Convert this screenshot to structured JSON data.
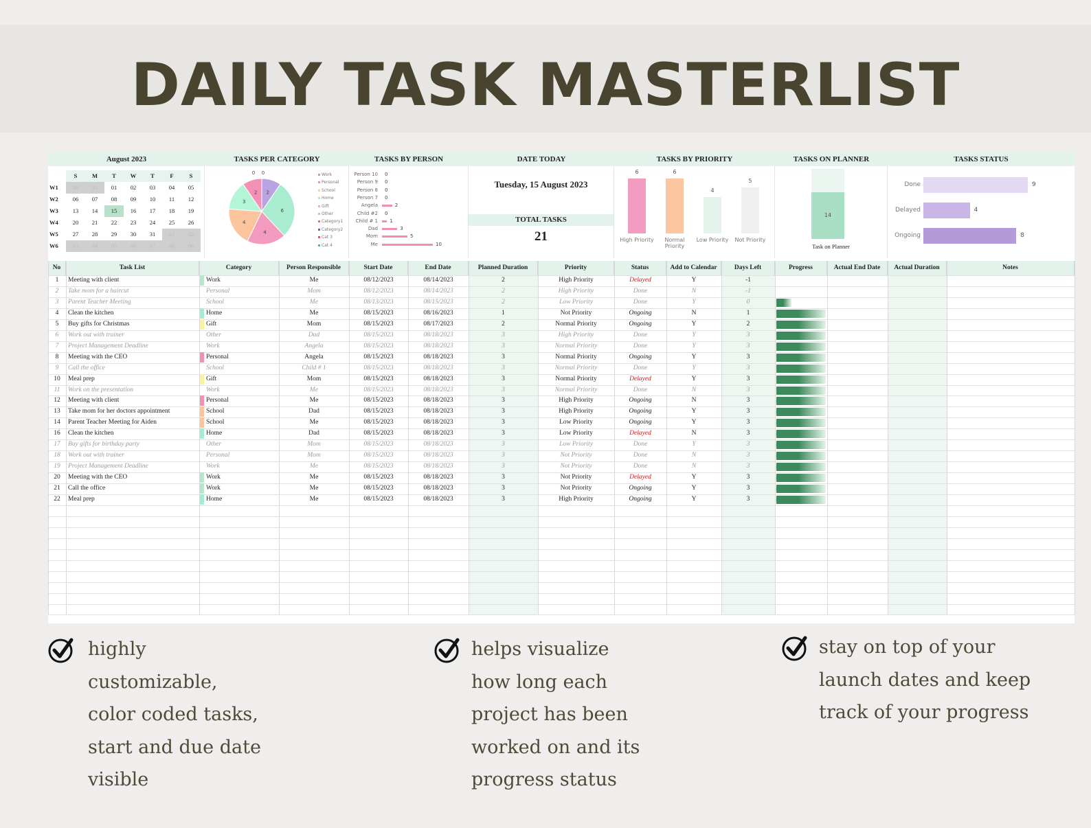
{
  "page_title": "DAILY TASK MASTERLIST",
  "dashboard": {
    "calendar": {
      "title": "August  2023",
      "dow": [
        "S",
        "M",
        "T",
        "W",
        "T",
        "F",
        "S"
      ],
      "weeks": [
        {
          "label": "W1",
          "days": [
            "30",
            "31",
            "01",
            "02",
            "03",
            "04",
            "05"
          ],
          "out": [
            0,
            1
          ]
        },
        {
          "label": "W2",
          "days": [
            "06",
            "07",
            "08",
            "09",
            "10",
            "11",
            "12"
          ],
          "out": []
        },
        {
          "label": "W3",
          "days": [
            "13",
            "14",
            "15",
            "16",
            "17",
            "18",
            "19"
          ],
          "out": [],
          "today": 2
        },
        {
          "label": "W4",
          "days": [
            "20",
            "21",
            "22",
            "23",
            "24",
            "25",
            "26"
          ],
          "out": []
        },
        {
          "label": "W5",
          "days": [
            "27",
            "28",
            "29",
            "30",
            "31",
            "01",
            "02"
          ],
          "out": [
            5,
            6
          ]
        },
        {
          "label": "W6",
          "days": [
            "03",
            "04",
            "05",
            "06",
            "07",
            "08",
            "09"
          ],
          "out": [
            0,
            1,
            2,
            3,
            4,
            5,
            6
          ]
        }
      ]
    },
    "category_chart": {
      "title": "TASKS PER CATEGORY",
      "legend": [
        "Work",
        "Personal",
        "School",
        "Home",
        "Gift",
        "Other",
        "Category1",
        "Category2",
        "Cat 3",
        "Cat 4"
      ],
      "legend_colors": [
        "#b39ddb",
        "#f48fb1",
        "#ffcc99",
        "#a8efd0",
        "#f8a7c9",
        "#c9b6e4",
        "#f06292",
        "#7e57c2",
        "#ef5350",
        "#4db6ac"
      ],
      "slices": [
        {
          "label": "Work",
          "value": 2,
          "color": "#b9a3e3"
        },
        {
          "label": "Home",
          "value": 6,
          "color": "#a9eccf"
        },
        {
          "label": "Personal",
          "value": 4,
          "color": "#f39bbf"
        },
        {
          "label": "School",
          "value": 4,
          "color": "#fcc49c"
        },
        {
          "label": "Other",
          "value": 3,
          "color": "#b4f5d8"
        },
        {
          "label": "Gift",
          "value": 2,
          "color": "#f48fb6"
        },
        {
          "label": "Category1",
          "value": 0,
          "color": "#dddddd"
        },
        {
          "label": "Category2",
          "value": 0,
          "color": "#dddddd"
        }
      ]
    },
    "person_chart": {
      "title": "TASKS BY PERSON",
      "rows": [
        {
          "name": "Person 10",
          "value": 0
        },
        {
          "name": "Person 9",
          "value": 0
        },
        {
          "name": "Person 8",
          "value": 0
        },
        {
          "name": "Person 7",
          "value": 0
        },
        {
          "name": "Angela",
          "value": 2
        },
        {
          "name": "Child #2",
          "value": 0
        },
        {
          "name": "Child # 1",
          "value": 1
        },
        {
          "name": "Dad",
          "value": 3
        },
        {
          "name": "Mom",
          "value": 5
        },
        {
          "name": "Me",
          "value": 10
        }
      ],
      "max": 10
    },
    "date_today": {
      "title": "DATE TODAY",
      "value": "Tuesday, 15 August 2023",
      "total_label": "TOTAL TASKS",
      "total_value": "21"
    },
    "priority_chart": {
      "title": "TASKS BY PRIORITY",
      "bars": [
        {
          "label": "High Priority",
          "value": 6,
          "color": "#f29bc0"
        },
        {
          "label": "Normal Priority",
          "value": 6,
          "color": "#fcc7a0"
        },
        {
          "label": "Low Priority",
          "value": 4,
          "color": "#e4f4ec"
        },
        {
          "label": "Not Priority",
          "value": 5,
          "color": "#efefef"
        }
      ],
      "max": 6
    },
    "planner_chart": {
      "title": "TASKS ON PLANNER",
      "value": 14,
      "total": 21,
      "label": "Task on Planner"
    },
    "status_chart": {
      "title": "TASKS STATUS",
      "bars": [
        {
          "label": "Done",
          "value": 9,
          "color": "#e3d9f2"
        },
        {
          "label": "Delayed",
          "value": 4,
          "color": "#c8b4e6"
        },
        {
          "label": "Ongoing",
          "value": 8,
          "color": "#b39ad9"
        }
      ],
      "max": 9
    }
  },
  "table": {
    "headers": [
      "No",
      "Task List",
      "Category",
      "Person Responsible",
      "Start Date",
      "End Date",
      "Planned Duration",
      "Priority",
      "Status",
      "Add to Calendar",
      "Days Left",
      "Progress",
      "Actual End Date",
      "Actual Duration",
      "Notes"
    ],
    "rows": [
      {
        "no": "1",
        "task": "Meeting with client",
        "cat": "Work",
        "person": "Me",
        "start": "08/12/2023",
        "end": "08/14/2023",
        "dur": "2",
        "prio": "High Priority",
        "status": "Delayed",
        "cal": "Y",
        "left": "-1",
        "done": false,
        "color": "#b7e6cc",
        "prog": 0
      },
      {
        "no": "2",
        "task": "Take mom for a haircut",
        "cat": "Personal",
        "person": "Mom",
        "start": "08/12/2023",
        "end": "08/14/2023",
        "dur": "2",
        "prio": "High Priority",
        "status": "Done",
        "cal": "N",
        "left": "-1",
        "done": true,
        "color": "",
        "prog": 0
      },
      {
        "no": "3",
        "task": "Parent Teacher Meeting",
        "cat": "School",
        "person": "Me",
        "start": "08/13/2023",
        "end": "08/15/2023",
        "dur": "2",
        "prio": "Low Priority",
        "status": "Done",
        "cal": "Y",
        "left": "0",
        "done": true,
        "color": "",
        "prog": 0.3
      },
      {
        "no": "4",
        "task": "Clean the kitchen",
        "cat": "Home",
        "person": "Me",
        "start": "08/15/2023",
        "end": "08/16/2023",
        "dur": "1",
        "prio": "Not Priority",
        "status": "Ongoing",
        "cal": "N",
        "left": "1",
        "done": false,
        "color": "#a6ecd0",
        "prog": 1
      },
      {
        "no": "5",
        "task": "Buy gifts for Christmas",
        "cat": "Gift",
        "person": "Mom",
        "start": "08/15/2023",
        "end": "08/17/2023",
        "dur": "2",
        "prio": "Normal Priority",
        "status": "Ongoing",
        "cal": "Y",
        "left": "2",
        "done": false,
        "color": "#fbf39c",
        "prog": 1
      },
      {
        "no": "6",
        "task": "Work out with trainer",
        "cat": "Other",
        "person": "Dad",
        "start": "08/15/2023",
        "end": "08/18/2023",
        "dur": "3",
        "prio": "High Priority",
        "status": "Done",
        "cal": "Y",
        "left": "3",
        "done": true,
        "color": "",
        "prog": 1
      },
      {
        "no": "7",
        "task": "Project Management Deadline",
        "cat": "Work",
        "person": "Angela",
        "start": "08/15/2023",
        "end": "08/18/2023",
        "dur": "3",
        "prio": "Normal Priority",
        "status": "Done",
        "cal": "Y",
        "left": "3",
        "done": true,
        "color": "",
        "prog": 1
      },
      {
        "no": "8",
        "task": "Meeting with the CEO",
        "cat": "Personal",
        "person": "Angela",
        "start": "08/15/2023",
        "end": "08/18/2023",
        "dur": "3",
        "prio": "Normal Priority",
        "status": "Ongoing",
        "cal": "Y",
        "left": "3",
        "done": false,
        "color": "#f48fb6",
        "prog": 1
      },
      {
        "no": "9",
        "task": "Call the office",
        "cat": "School",
        "person": "Child # 1",
        "start": "08/15/2023",
        "end": "08/18/2023",
        "dur": "3",
        "prio": "Normal Priority",
        "status": "Done",
        "cal": "Y",
        "left": "3",
        "done": true,
        "color": "",
        "prog": 1
      },
      {
        "no": "10",
        "task": "Meal prep",
        "cat": "Gift",
        "person": "Mom",
        "start": "08/15/2023",
        "end": "08/18/2023",
        "dur": "3",
        "prio": "Normal Priority",
        "status": "Delayed",
        "cal": "Y",
        "left": "3",
        "done": false,
        "color": "#fbf39c",
        "prog": 1
      },
      {
        "no": "11",
        "task": "Work on the presentation",
        "cat": "Work",
        "person": "Me",
        "start": "08/15/2023",
        "end": "08/18/2023",
        "dur": "3",
        "prio": "Normal Priority",
        "status": "Done",
        "cal": "N",
        "left": "3",
        "done": true,
        "color": "",
        "prog": 1
      },
      {
        "no": "12",
        "task": "Meeting with client",
        "cat": "Personal",
        "person": "Me",
        "start": "08/15/2023",
        "end": "08/18/2023",
        "dur": "3",
        "prio": "High Priority",
        "status": "Ongoing",
        "cal": "N",
        "left": "3",
        "done": false,
        "color": "#f48fb6",
        "prog": 1
      },
      {
        "no": "13",
        "task": "Take mom for her doctors appointment",
        "cat": "School",
        "person": "Dad",
        "start": "08/15/2023",
        "end": "08/18/2023",
        "dur": "3",
        "prio": "High Priority",
        "status": "Ongoing",
        "cal": "Y",
        "left": "3",
        "done": false,
        "color": "#fcc49c",
        "prog": 1
      },
      {
        "no": "14",
        "task": "Parent Teacher Meeting for Aiden",
        "cat": "School",
        "person": "Me",
        "start": "08/15/2023",
        "end": "08/18/2023",
        "dur": "3",
        "prio": "Low Priority",
        "status": "Ongoing",
        "cal": "Y",
        "left": "3",
        "done": false,
        "color": "#fcc49c",
        "prog": 1
      },
      {
        "no": "16",
        "task": "Clean the kitchen",
        "cat": "Home",
        "person": "Dad",
        "start": "08/15/2023",
        "end": "08/18/2023",
        "dur": "3",
        "prio": "Low Priority",
        "status": "Delayed",
        "cal": "N",
        "left": "3",
        "done": false,
        "color": "#a6ecd0",
        "prog": 1
      },
      {
        "no": "17",
        "task": "Buy gifts for birthday party",
        "cat": "Other",
        "person": "Mom",
        "start": "08/15/2023",
        "end": "08/18/2023",
        "dur": "3",
        "prio": "Low Priority",
        "status": "Done",
        "cal": "Y",
        "left": "3",
        "done": true,
        "color": "",
        "prog": 1
      },
      {
        "no": "18",
        "task": "Work out with trainer",
        "cat": "Personal",
        "person": "Mom",
        "start": "08/15/2023",
        "end": "08/18/2023",
        "dur": "3",
        "prio": "Not Priority",
        "status": "Done",
        "cal": "N",
        "left": "3",
        "done": true,
        "color": "",
        "prog": 1
      },
      {
        "no": "19",
        "task": "Project Management Deadline",
        "cat": "Work",
        "person": "Me",
        "start": "08/15/2023",
        "end": "08/18/2023",
        "dur": "3",
        "prio": "Not Priority",
        "status": "Done",
        "cal": "N",
        "left": "3",
        "done": true,
        "color": "",
        "prog": 1
      },
      {
        "no": "20",
        "task": "Meeting with the CEO",
        "cat": "Work",
        "person": "Me",
        "start": "08/15/2023",
        "end": "08/18/2023",
        "dur": "3",
        "prio": "Not Priority",
        "status": "Delayed",
        "cal": "Y",
        "left": "3",
        "done": false,
        "color": "#b7e6cc",
        "prog": 1
      },
      {
        "no": "21",
        "task": "Call the office",
        "cat": "Work",
        "person": "Me",
        "start": "08/15/2023",
        "end": "08/18/2023",
        "dur": "3",
        "prio": "Not Priority",
        "status": "Ongoing",
        "cal": "Y",
        "left": "3",
        "done": false,
        "color": "#b7e6cc",
        "prog": 1
      },
      {
        "no": "22",
        "task": "Meal prep",
        "cat": "Home",
        "person": "Me",
        "start": "08/15/2023",
        "end": "08/18/2023",
        "dur": "3",
        "prio": "High Priority",
        "status": "Ongoing",
        "cal": "Y",
        "left": "3",
        "done": false,
        "color": "#a6ecd0",
        "prog": 1
      }
    ]
  },
  "features": [
    {
      "text": "highly customizable, color coded tasks, start and due date visible",
      "lines": [
        "highly",
        "customizable,",
        "color coded tasks,",
        "start and due date",
        "visible"
      ]
    },
    {
      "text": "helps visualize how long each project has been worked on and its progress status",
      "lines": [
        "helps visualize",
        "how long each",
        "project has been",
        "worked on and its",
        "progress status"
      ]
    },
    {
      "text": "stay on top of your launch dates and keep track of your progress",
      "lines": [
        "stay on top of your",
        "launch dates and keep",
        "track of your progress"
      ]
    }
  ],
  "icons": {
    "check": "check-circle-icon"
  },
  "colors": {
    "title": "#49442f",
    "header_mint": "#e3f3ec",
    "delayed": "#d3141b",
    "progress": "#3b8a5d"
  }
}
